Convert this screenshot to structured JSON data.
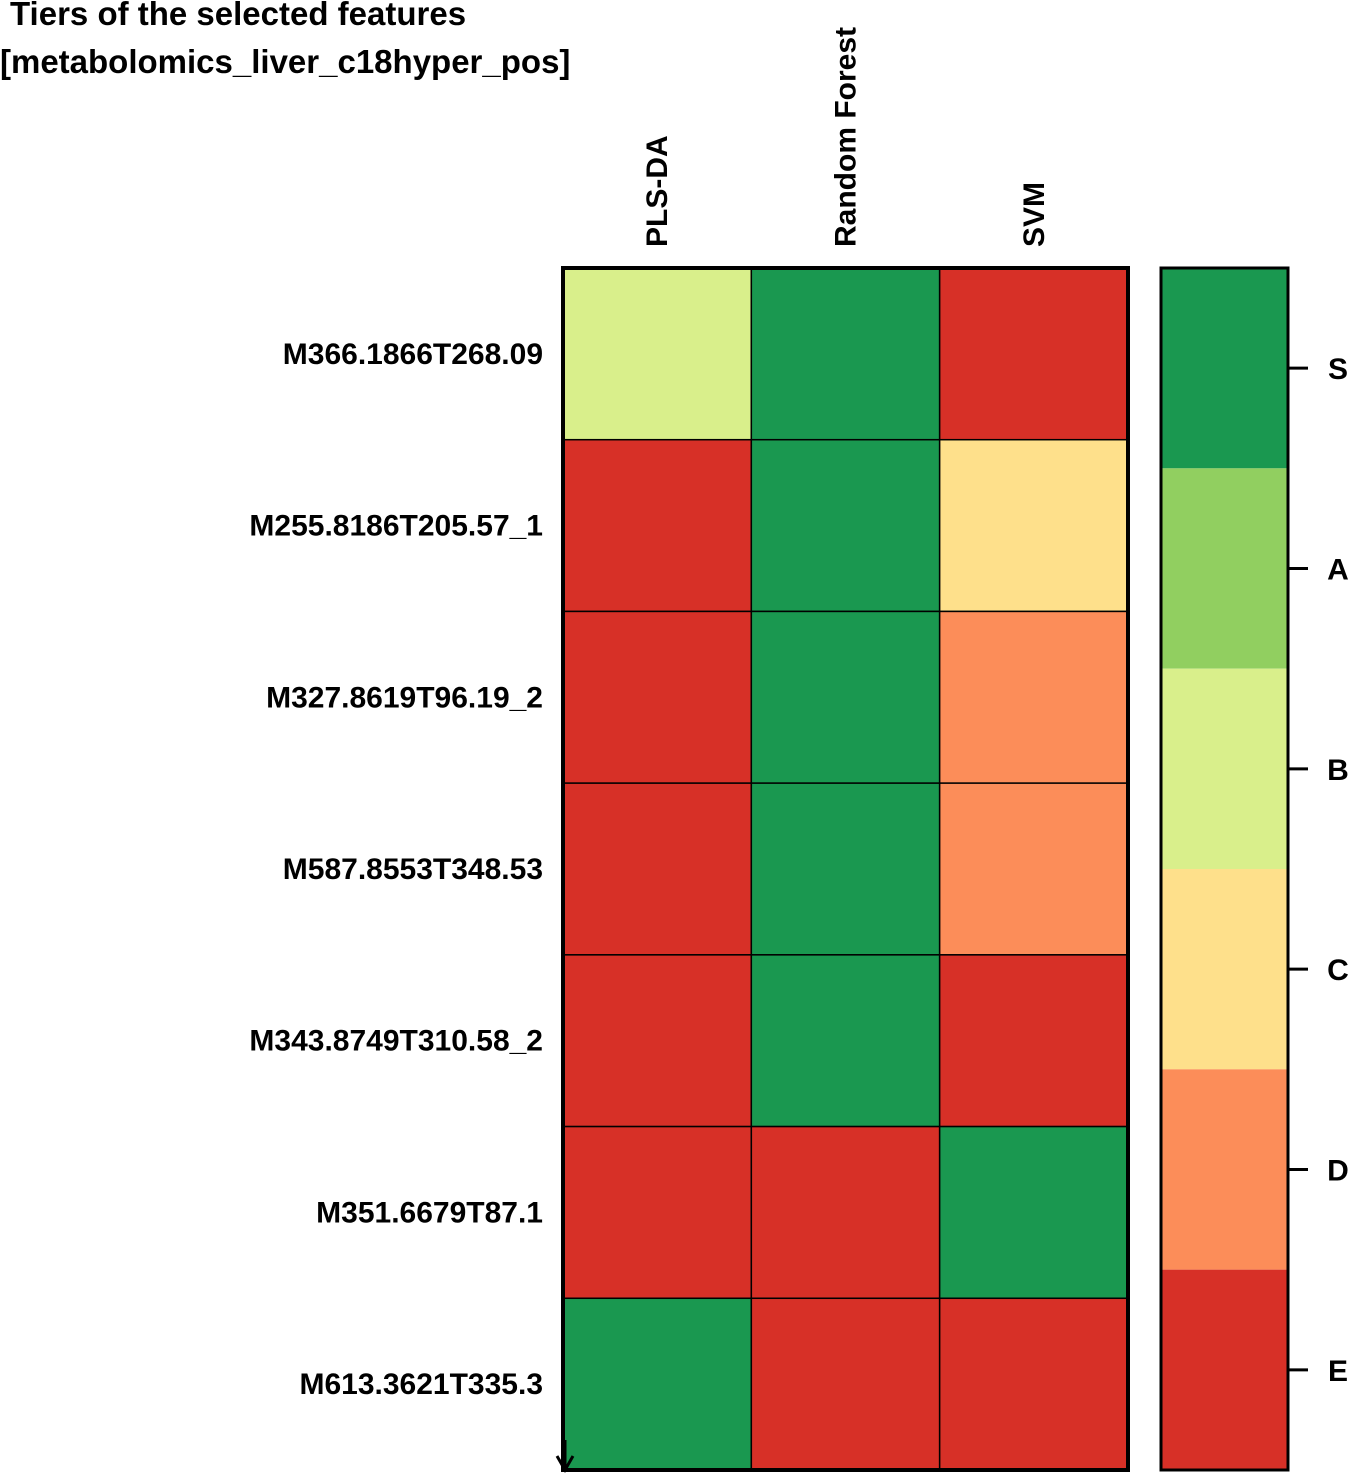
{
  "chart_data": {
    "type": "heatmap",
    "title_lines": [
      "Tiers of the selected features",
      "[metabolomics_liver_c18hyper_pos]"
    ],
    "columns": [
      "PLS-DA",
      "Random Forest",
      "SVM"
    ],
    "rows": [
      "M366.1866T268.09",
      "M255.8186T205.57_1",
      "M327.8619T96.19_2",
      "M587.8553T348.53",
      "M343.8749T310.58_2",
      "M351.6679T87.1",
      "M613.3621T335.3"
    ],
    "values": [
      [
        "B",
        "S",
        "E"
      ],
      [
        "E",
        "S",
        "C"
      ],
      [
        "E",
        "S",
        "D"
      ],
      [
        "E",
        "S",
        "D"
      ],
      [
        "E",
        "S",
        "E"
      ],
      [
        "E",
        "E",
        "S"
      ],
      [
        "S",
        "E",
        "E"
      ]
    ],
    "legend": {
      "placement": "right",
      "tiers": [
        "S",
        "A",
        "B",
        "C",
        "D",
        "E"
      ],
      "colors": {
        "S": "#1a9850",
        "A": "#91cf60",
        "B": "#d9ef8b",
        "C": "#fee08b",
        "D": "#fc8d59",
        "E": "#d73027"
      }
    }
  }
}
